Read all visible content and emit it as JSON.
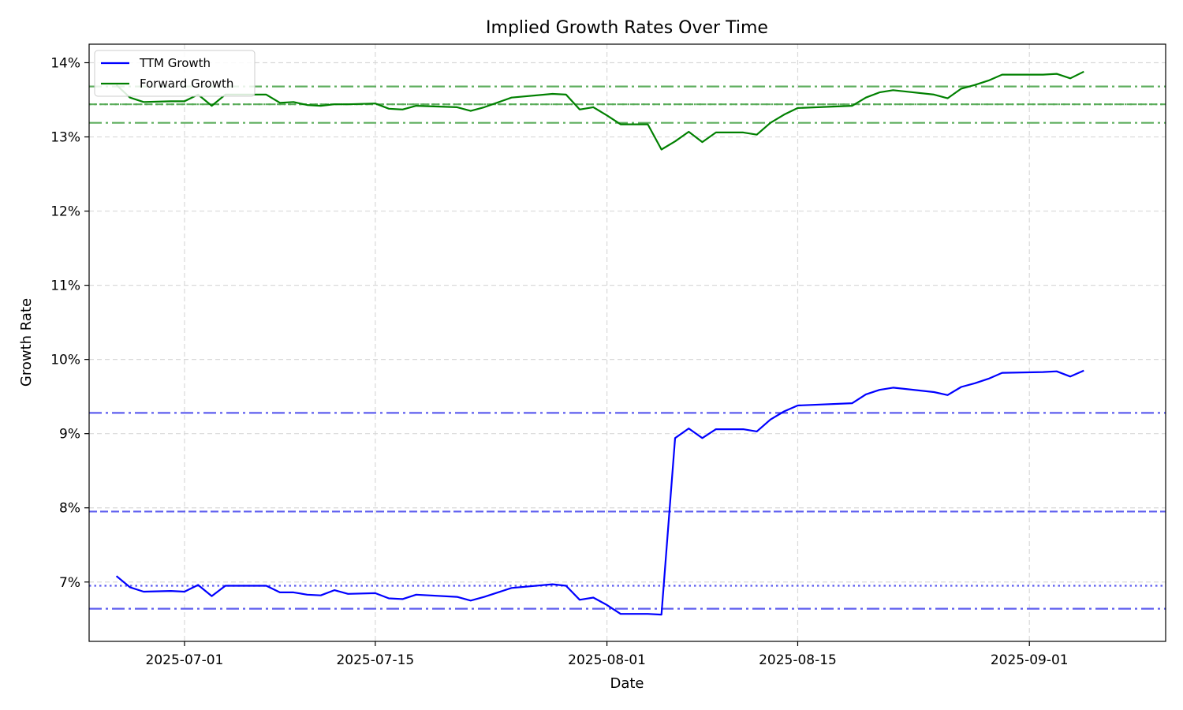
{
  "chart_data": {
    "type": "line",
    "title": "Implied Growth Rates Over Time",
    "xlabel": "Date",
    "ylabel": "Growth Rate",
    "grid": true,
    "legend_position": "top-left",
    "x_range": [
      "2025-06-24",
      "2025-09-11"
    ],
    "ylim": [
      6.2,
      14.25
    ],
    "y_ticks": [
      {
        "value": 7,
        "label": "7%"
      },
      {
        "value": 8,
        "label": "8%"
      },
      {
        "value": 9,
        "label": "9%"
      },
      {
        "value": 10,
        "label": "10%"
      },
      {
        "value": 11,
        "label": "11%"
      },
      {
        "value": 12,
        "label": "12%"
      },
      {
        "value": 13,
        "label": "13%"
      },
      {
        "value": 14,
        "label": "14%"
      }
    ],
    "x_ticks": [
      {
        "date": "2025-07-01",
        "label": "2025-07-01"
      },
      {
        "date": "2025-07-15",
        "label": "2025-07-15"
      },
      {
        "date": "2025-08-01",
        "label": "2025-08-01"
      },
      {
        "date": "2025-08-15",
        "label": "2025-08-15"
      },
      {
        "date": "2025-09-01",
        "label": "2025-09-01"
      }
    ],
    "series": [
      {
        "name": "TTM Growth",
        "color": "#0000ff",
        "points": [
          [
            "2025-06-26",
            7.08
          ],
          [
            "2025-06-27",
            6.93
          ],
          [
            "2025-06-28",
            6.87
          ],
          [
            "2025-06-30",
            6.88
          ],
          [
            "2025-07-01",
            6.87
          ],
          [
            "2025-07-02",
            6.96
          ],
          [
            "2025-07-03",
            6.81
          ],
          [
            "2025-07-04",
            6.95
          ],
          [
            "2025-07-07",
            6.95
          ],
          [
            "2025-07-08",
            6.86
          ],
          [
            "2025-07-09",
            6.86
          ],
          [
            "2025-07-10",
            6.83
          ],
          [
            "2025-07-11",
            6.82
          ],
          [
            "2025-07-12",
            6.89
          ],
          [
            "2025-07-13",
            6.84
          ],
          [
            "2025-07-15",
            6.85
          ],
          [
            "2025-07-16",
            6.78
          ],
          [
            "2025-07-17",
            6.77
          ],
          [
            "2025-07-18",
            6.83
          ],
          [
            "2025-07-21",
            6.8
          ],
          [
            "2025-07-22",
            6.75
          ],
          [
            "2025-07-23",
            6.8
          ],
          [
            "2025-07-25",
            6.92
          ],
          [
            "2025-07-28",
            6.97
          ],
          [
            "2025-07-29",
            6.95
          ],
          [
            "2025-07-30",
            6.76
          ],
          [
            "2025-07-31",
            6.79
          ],
          [
            "2025-08-01",
            6.69
          ],
          [
            "2025-08-02",
            6.57
          ],
          [
            "2025-08-04",
            6.57
          ],
          [
            "2025-08-05",
            6.56
          ],
          [
            "2025-08-06",
            8.94
          ],
          [
            "2025-08-07",
            9.07
          ],
          [
            "2025-08-08",
            8.94
          ],
          [
            "2025-08-09",
            9.06
          ],
          [
            "2025-08-11",
            9.06
          ],
          [
            "2025-08-12",
            9.03
          ],
          [
            "2025-08-13",
            9.19
          ],
          [
            "2025-08-14",
            9.3
          ],
          [
            "2025-08-15",
            9.38
          ],
          [
            "2025-08-19",
            9.41
          ],
          [
            "2025-08-20",
            9.53
          ],
          [
            "2025-08-21",
            9.59
          ],
          [
            "2025-08-22",
            9.62
          ],
          [
            "2025-08-25",
            9.56
          ],
          [
            "2025-08-26",
            9.52
          ],
          [
            "2025-08-27",
            9.63
          ],
          [
            "2025-08-28",
            9.68
          ],
          [
            "2025-08-29",
            9.74
          ],
          [
            "2025-08-30",
            9.82
          ],
          [
            "2025-09-02",
            9.83
          ],
          [
            "2025-09-03",
            9.84
          ],
          [
            "2025-09-04",
            9.77
          ],
          [
            "2025-09-05",
            9.85
          ]
        ]
      },
      {
        "name": "Forward Growth",
        "color": "#008000",
        "points": [
          [
            "2025-06-26",
            13.7
          ],
          [
            "2025-06-27",
            13.53
          ],
          [
            "2025-06-28",
            13.47
          ],
          [
            "2025-06-30",
            13.48
          ],
          [
            "2025-07-01",
            13.48
          ],
          [
            "2025-07-02",
            13.57
          ],
          [
            "2025-07-03",
            13.42
          ],
          [
            "2025-07-04",
            13.57
          ],
          [
            "2025-07-07",
            13.57
          ],
          [
            "2025-07-08",
            13.46
          ],
          [
            "2025-07-09",
            13.47
          ],
          [
            "2025-07-10",
            13.43
          ],
          [
            "2025-07-11",
            13.42
          ],
          [
            "2025-07-12",
            13.44
          ],
          [
            "2025-07-13",
            13.44
          ],
          [
            "2025-07-15",
            13.45
          ],
          [
            "2025-07-16",
            13.38
          ],
          [
            "2025-07-17",
            13.37
          ],
          [
            "2025-07-18",
            13.42
          ],
          [
            "2025-07-21",
            13.4
          ],
          [
            "2025-07-22",
            13.35
          ],
          [
            "2025-07-23",
            13.4
          ],
          [
            "2025-07-25",
            13.53
          ],
          [
            "2025-07-28",
            13.58
          ],
          [
            "2025-07-29",
            13.57
          ],
          [
            "2025-07-30",
            13.37
          ],
          [
            "2025-07-31",
            13.4
          ],
          [
            "2025-08-01",
            13.29
          ],
          [
            "2025-08-02",
            13.17
          ],
          [
            "2025-08-04",
            13.17
          ],
          [
            "2025-08-05",
            12.83
          ],
          [
            "2025-08-06",
            12.94
          ],
          [
            "2025-08-07",
            13.07
          ],
          [
            "2025-08-08",
            12.93
          ],
          [
            "2025-08-09",
            13.06
          ],
          [
            "2025-08-11",
            13.06
          ],
          [
            "2025-08-12",
            13.03
          ],
          [
            "2025-08-13",
            13.19
          ],
          [
            "2025-08-14",
            13.3
          ],
          [
            "2025-08-15",
            13.39
          ],
          [
            "2025-08-19",
            13.42
          ],
          [
            "2025-08-20",
            13.53
          ],
          [
            "2025-08-21",
            13.6
          ],
          [
            "2025-08-22",
            13.63
          ],
          [
            "2025-08-25",
            13.57
          ],
          [
            "2025-08-26",
            13.52
          ],
          [
            "2025-08-27",
            13.65
          ],
          [
            "2025-08-28",
            13.7
          ],
          [
            "2025-08-29",
            13.76
          ],
          [
            "2025-08-30",
            13.84
          ],
          [
            "2025-09-02",
            13.84
          ],
          [
            "2025-09-03",
            13.85
          ],
          [
            "2025-09-04",
            13.79
          ],
          [
            "2025-09-05",
            13.88
          ]
        ]
      }
    ],
    "reference_lines": [
      {
        "series": "TTM Growth",
        "value": 9.28,
        "style": "dashdot",
        "color": "#5555ee"
      },
      {
        "series": "TTM Growth",
        "value": 7.95,
        "style": "dashed",
        "color": "#5555ee"
      },
      {
        "series": "TTM Growth",
        "value": 6.95,
        "style": "dotted",
        "color": "#5555ee"
      },
      {
        "series": "TTM Growth",
        "value": 6.64,
        "style": "dashdot",
        "color": "#5555ee"
      },
      {
        "series": "Forward Growth",
        "value": 13.68,
        "style": "dashdot",
        "color": "#55aa55"
      },
      {
        "series": "Forward Growth",
        "value": 13.44,
        "style": "dashed",
        "color": "#55aa55"
      },
      {
        "series": "Forward Growth",
        "value": 13.44,
        "style": "dotted",
        "color": "#55aa55"
      },
      {
        "series": "Forward Growth",
        "value": 13.19,
        "style": "dashdot",
        "color": "#55aa55"
      }
    ]
  }
}
